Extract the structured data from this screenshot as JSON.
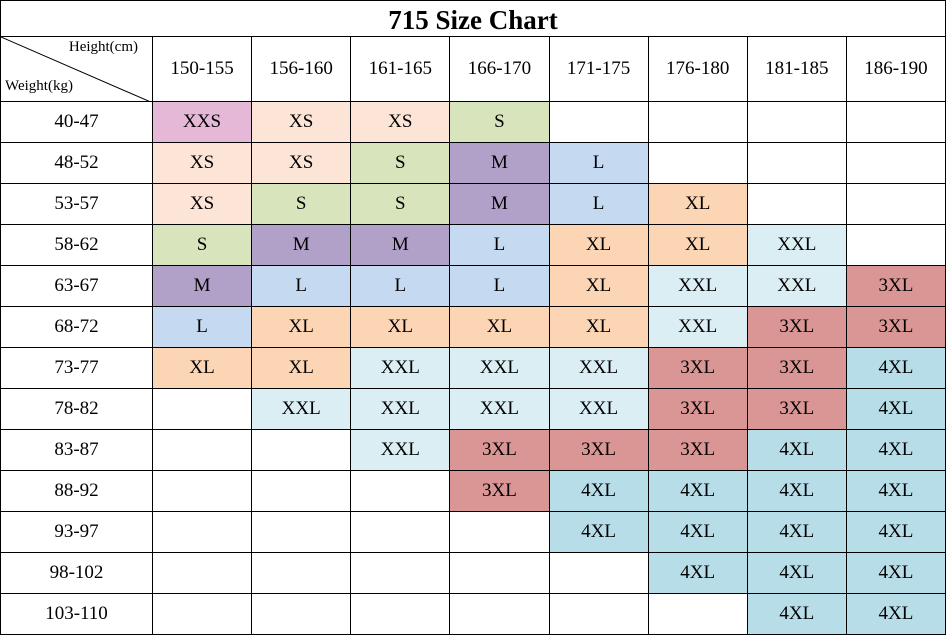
{
  "title": "715 Size Chart",
  "corner": {
    "top": "Height(cm)",
    "bottom": "Weight(kg)"
  },
  "columns": [
    "150-155",
    "156-160",
    "161-165",
    "166-170",
    "171-175",
    "176-180",
    "181-185",
    "186-190"
  ],
  "cell_colors": {
    "XXS": "#e6b8d7",
    "XS": "#fce4d6",
    "S": "#d8e4bc",
    "M": "#b1a0c7",
    "L": "#c5d9f1",
    "XL": "#fcd5b4",
    "XXL": "#daeef3",
    "3XL": "#da9694",
    "4XL": "#b7dde8"
  },
  "rows": [
    {
      "weight": "40-47",
      "cells": [
        "XXS",
        "XS",
        "XS",
        "S",
        null,
        null,
        null,
        null
      ]
    },
    {
      "weight": "48-52",
      "cells": [
        "XS",
        "XS",
        "S",
        "M",
        "L",
        null,
        null,
        null
      ]
    },
    {
      "weight": "53-57",
      "cells": [
        "XS",
        "S",
        "S",
        "M",
        "L",
        "XL",
        null,
        null
      ]
    },
    {
      "weight": "58-62",
      "cells": [
        "S",
        "M",
        "M",
        "L",
        "XL",
        "XL",
        "XXL",
        null
      ]
    },
    {
      "weight": "63-67",
      "cells": [
        "M",
        "L",
        "L",
        "L",
        "XL",
        "XXL",
        "XXL",
        "3XL"
      ]
    },
    {
      "weight": "68-72",
      "cells": [
        "L",
        "XL",
        "XL",
        "XL",
        "XL",
        "XXL",
        "3XL",
        "3XL"
      ]
    },
    {
      "weight": "73-77",
      "cells": [
        "XL",
        "XL",
        "XXL",
        "XXL",
        "XXL",
        "3XL",
        "3XL",
        "4XL"
      ]
    },
    {
      "weight": "78-82",
      "cells": [
        null,
        "XXL",
        "XXL",
        "XXL",
        "XXL",
        "3XL",
        "3XL",
        "4XL"
      ]
    },
    {
      "weight": "83-87",
      "cells": [
        null,
        null,
        "XXL",
        "3XL",
        "3XL",
        "3XL",
        "4XL",
        "4XL"
      ]
    },
    {
      "weight": "88-92",
      "cells": [
        null,
        null,
        null,
        "3XL",
        "4XL",
        "4XL",
        "4XL",
        "4XL"
      ]
    },
    {
      "weight": "93-97",
      "cells": [
        null,
        null,
        null,
        null,
        "4XL",
        "4XL",
        "4XL",
        "4XL"
      ]
    },
    {
      "weight": "98-102",
      "cells": [
        null,
        null,
        null,
        null,
        null,
        "4XL",
        "4XL",
        "4XL"
      ]
    },
    {
      "weight": "103-110",
      "cells": [
        null,
        null,
        null,
        null,
        null,
        null,
        "4XL",
        "4XL"
      ]
    }
  ]
}
